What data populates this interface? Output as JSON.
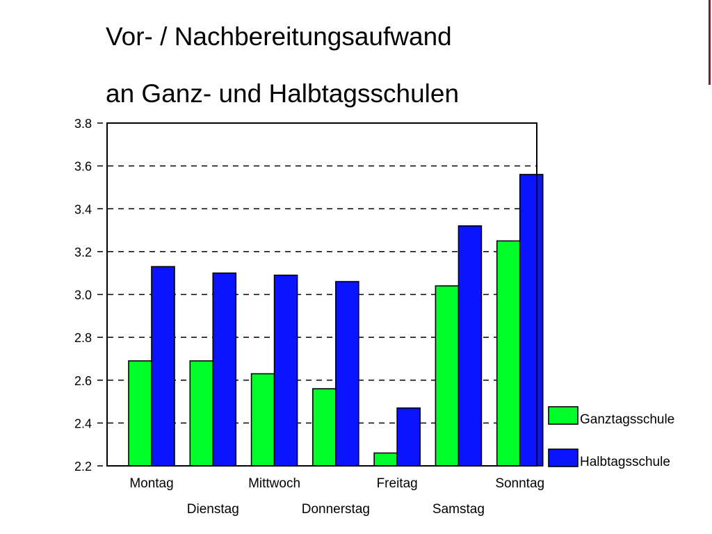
{
  "chart_data": {
    "type": "bar",
    "title": [
      "Vor- / Nachbereitungsaufwand",
      "an Ganz- und Halbtagsschulen"
    ],
    "categories": [
      "Montag",
      "Dienstag",
      "Mittwoch",
      "Donnerstag",
      "Freitag",
      "Samstag",
      "Sonntag"
    ],
    "series": [
      {
        "name": "Ganztagsschule",
        "color": "#00ff2a",
        "values": [
          2.69,
          2.69,
          2.63,
          2.56,
          2.26,
          3.04,
          3.25
        ]
      },
      {
        "name": "Halbtagsschule",
        "color": "#0a14ff",
        "values": [
          3.13,
          3.1,
          3.09,
          3.06,
          2.47,
          3.32,
          3.56
        ]
      }
    ],
    "xlabel": "",
    "ylabel": "",
    "ylim": [
      2.2,
      3.8
    ],
    "yticks": [
      "2.2",
      "2.4",
      "2.6",
      "2.8",
      "3.0",
      "3.2",
      "3.4",
      "3.6",
      "3.8"
    ],
    "grid": "dashed horizontal",
    "legend_position": "right-bottom"
  },
  "decor": {
    "edge_bar_color": "#8b1a1a"
  }
}
